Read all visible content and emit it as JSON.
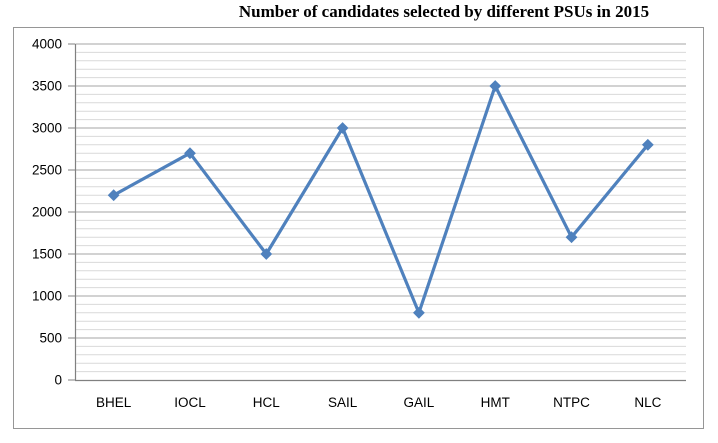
{
  "title": "Number of candidates selected by different PSUs in 2015",
  "chart_data": {
    "type": "line",
    "title": "Number of candidates selected by different PSUs in 2015",
    "categories": [
      "BHEL",
      "IOCL",
      "HCL",
      "SAIL",
      "GAIL",
      "HMT",
      "NTPC",
      "NLC"
    ],
    "values": [
      2200,
      2700,
      1500,
      3000,
      800,
      3500,
      1700,
      2800
    ],
    "xlabel": "",
    "ylabel": "",
    "ylim": [
      0,
      4000
    ],
    "y_major_step": 500,
    "y_minor_step": 100,
    "y_tick_labels": [
      "0",
      "500",
      "1000",
      "1500",
      "2000",
      "2500",
      "3000",
      "3500",
      "4000"
    ],
    "grid": true,
    "legend_position": "none",
    "marker": "diamond",
    "colors": {
      "line": "#4F81BD",
      "marker": "#4F81BD",
      "major_grid": "#A6A6A6",
      "minor_grid": "#D9D9D9",
      "axis": "#808080",
      "frame_border": "#969696",
      "text": "#000000",
      "background": "#FFFFFF"
    }
  }
}
